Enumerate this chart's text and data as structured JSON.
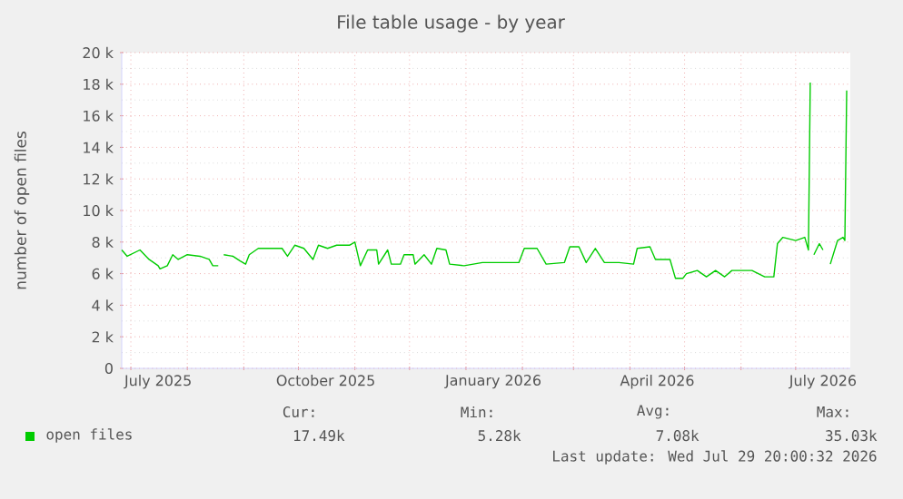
{
  "chart_data": {
    "type": "line",
    "title": "File table usage - by year",
    "ylabel": "number of open files",
    "xlim": [
      "2025-06-26",
      "2026-07-31"
    ],
    "xticks": [
      {
        "value": "2025-07-01",
        "label": null
      },
      {
        "value": "2025-08-01",
        "label": null
      },
      {
        "value": "2025-09-01",
        "label": null
      },
      {
        "value": "2025-10-01",
        "label": null
      },
      {
        "value": "2025-11-01",
        "label": null
      },
      {
        "value": "2025-12-01",
        "label": null
      },
      {
        "value": "2026-01-01",
        "label": null
      },
      {
        "value": "2026-02-01",
        "label": null
      },
      {
        "value": "2026-03-01",
        "label": null
      },
      {
        "value": "2026-04-01",
        "label": null
      },
      {
        "value": "2026-05-01",
        "label": null
      },
      {
        "value": "2026-06-01",
        "label": null
      },
      {
        "value": "2026-07-01",
        "label": null
      },
      {
        "value": "2025-07-16",
        "label": "July 2025"
      },
      {
        "value": "2025-10-16",
        "label": "October 2025"
      },
      {
        "value": "2026-01-16",
        "label": "January 2026"
      },
      {
        "value": "2026-04-16",
        "label": "April 2026"
      },
      {
        "value": "2026-07-16",
        "label": "July 2026"
      }
    ],
    "ylim": [
      0,
      20000
    ],
    "yticks": [
      0,
      {
        "value": 2000,
        "label": "2 k"
      },
      {
        "value": 4000,
        "label": "4 k"
      },
      {
        "value": 6000,
        "label": "6 k"
      },
      {
        "value": 8000,
        "label": "8 k"
      },
      {
        "value": 10000,
        "label": "10 k"
      },
      {
        "value": 12000,
        "label": "12 k"
      },
      {
        "value": 14000,
        "label": "14 k"
      },
      {
        "value": 16000,
        "label": "16 k"
      },
      {
        "value": 18000,
        "label": "18 k"
      },
      {
        "value": 20000,
        "label": "20 k"
      },
      {
        "value": 1000,
        "label": null
      },
      {
        "value": 3000,
        "label": null
      },
      {
        "value": 5000,
        "label": null
      },
      {
        "value": 7000,
        "label": null
      },
      {
        "value": 9000,
        "label": null
      },
      {
        "value": 11000,
        "label": null
      },
      {
        "value": 13000,
        "label": null
      },
      {
        "value": 15000,
        "label": null
      },
      {
        "value": 17000,
        "label": null
      },
      {
        "value": 19000,
        "label": null
      }
    ],
    "grid": true,
    "legend": "bottom left",
    "x": [
      "2025-06-26",
      "2025-06-29",
      "2025-07-06",
      "2025-07-11",
      "2025-07-16",
      "2025-07-17",
      "2025-07-21",
      "2025-07-24",
      "2025-07-27",
      "2025-08-01",
      "2025-08-08",
      "2025-08-13",
      "2025-08-15",
      "2025-08-18",
      "2025-08-20",
      "2025-08-21",
      "2025-08-26",
      "2025-08-30",
      "2025-09-02",
      "2025-09-04",
      "2025-09-09",
      "2025-09-14",
      "2025-09-22",
      "2025-09-25",
      "2025-09-29",
      "2025-10-04",
      "2025-10-09",
      "2025-10-12",
      "2025-10-17",
      "2025-10-22",
      "2025-10-29",
      "2025-11-01",
      "2025-11-04",
      "2025-11-08",
      "2025-11-13",
      "2025-11-14",
      "2025-11-19",
      "2025-11-21",
      "2025-11-26",
      "2025-11-28",
      "2025-12-03",
      "2025-12-04",
      "2025-12-09",
      "2025-12-13",
      "2025-12-16",
      "2025-12-21",
      "2025-12-23",
      "2025-12-31",
      "2026-01-10",
      "2026-01-18",
      "2026-01-30",
      "2026-02-02",
      "2026-02-09",
      "2026-02-14",
      "2026-02-24",
      "2026-02-27",
      "2026-03-04",
      "2026-03-08",
      "2026-03-13",
      "2026-03-18",
      "2026-03-26",
      "2026-04-03",
      "2026-04-05",
      "2026-04-12",
      "2026-04-15",
      "2026-04-23",
      "2026-04-26",
      "2026-04-30",
      "2026-05-02",
      "2026-05-08",
      "2026-05-13",
      "2026-05-18",
      "2026-05-23",
      "2026-05-27",
      "2026-06-07",
      "2026-06-14",
      "2026-06-19",
      "2026-06-21",
      "2026-06-24",
      "2026-07-01",
      "2026-07-06",
      "2026-07-08",
      "2026-07-09",
      "2026-07-10",
      "2026-07-11",
      "2026-07-14",
      "2026-07-16",
      "2026-07-17",
      "2026-07-20",
      "2026-07-24",
      "2026-07-27",
      "2026-07-28",
      "2026-07-29"
    ],
    "series": [
      {
        "name": "open files",
        "color": "#00cc00",
        "values": [
          7500,
          7100,
          7500,
          6900,
          6500,
          6300,
          6500,
          7200,
          6900,
          7200,
          7100,
          6900,
          6500,
          6500,
          null,
          7200,
          7100,
          6800,
          6600,
          7200,
          7600,
          7600,
          7600,
          7100,
          7800,
          7600,
          6900,
          7800,
          7600,
          7800,
          7800,
          8000,
          6500,
          7500,
          7500,
          6600,
          7500,
          6600,
          6600,
          7200,
          7200,
          6600,
          7200,
          6600,
          7600,
          7500,
          6600,
          6500,
          6700,
          6700,
          6700,
          7600,
          7600,
          6600,
          6700,
          7700,
          7700,
          6700,
          7600,
          6700,
          6700,
          6600,
          7600,
          7700,
          6900,
          6900,
          5700,
          5700,
          6000,
          6200,
          5800,
          6200,
          5800,
          6200,
          6200,
          5800,
          5800,
          7900,
          8300,
          8100,
          8300,
          7500,
          18100,
          null,
          7200,
          7900,
          7500,
          null,
          6600,
          8100,
          8300,
          8100,
          17600
        ]
      }
    ],
    "annotations": [
      "Cur:",
      "Min:",
      "Avg:",
      "Max:",
      "17.49k",
      "5.28k",
      "7.08k",
      "35.03k",
      "Last update: Wed Jul 29 20:00:32 2026"
    ]
  }
}
